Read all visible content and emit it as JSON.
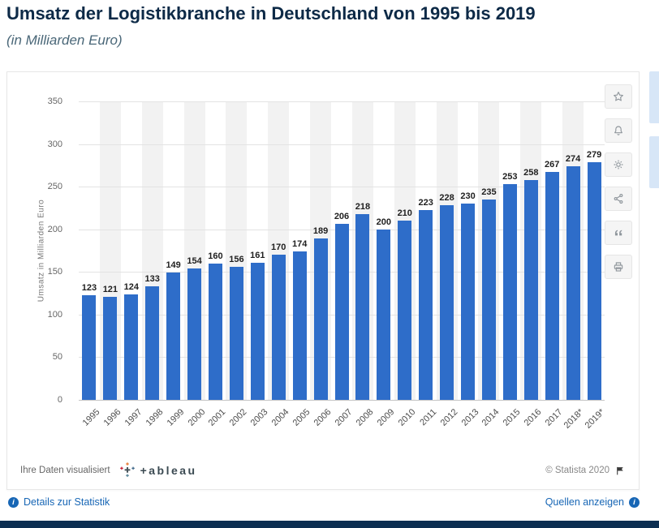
{
  "header": {
    "title": "Umsatz der Logistikbranche in Deutschland von 1995 bis 2019",
    "subtitle": "(in Milliarden Euro)"
  },
  "chart_data": {
    "type": "bar",
    "title": "Umsatz der Logistikbranche in Deutschland von 1995 bis 2019 (in Milliarden Euro)",
    "categories": [
      "1995",
      "1996",
      "1997",
      "1998",
      "1999",
      "2000",
      "2001",
      "2002",
      "2003",
      "2004",
      "2005",
      "2006",
      "2007",
      "2008",
      "2009",
      "2010",
      "2011",
      "2012",
      "2013",
      "2014",
      "2015",
      "2016",
      "2017",
      "2018*",
      "2019*"
    ],
    "values": [
      123,
      121,
      124,
      133,
      149,
      154,
      160,
      156,
      161,
      170,
      174,
      189,
      206,
      218,
      200,
      210,
      223,
      228,
      230,
      235,
      253,
      258,
      267,
      274,
      279
    ],
    "xlabel": "",
    "ylabel": "Umsatz in Milliarden Euro",
    "ylim": [
      0,
      350
    ],
    "yticks": [
      0,
      50,
      100,
      150,
      200,
      250,
      300,
      350
    ],
    "bar_color": "#2e6dc9",
    "grid": true,
    "legend": false
  },
  "toolbar": {
    "icons": [
      "favorite",
      "notifications",
      "settings",
      "share",
      "cite",
      "print"
    ]
  },
  "footer": {
    "visualized_label": "Ihre Daten visualisiert",
    "tableau_wordmark": "+ableau",
    "copyright": "© Statista 2020"
  },
  "links": {
    "details": "Details zur Statistik",
    "sources": "Quellen anzeigen"
  },
  "colors": {
    "bar": "#2e6dc9",
    "title": "#0d2a47",
    "link": "#1766b5"
  }
}
